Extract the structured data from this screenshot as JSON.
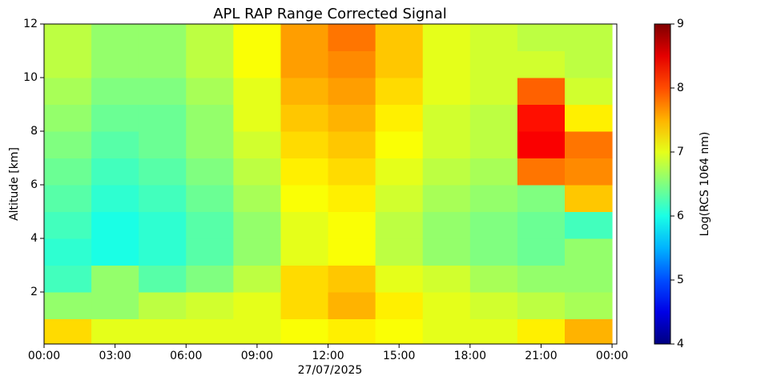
{
  "chart_data": {
    "type": "heatmap",
    "title": "APL RAP Range Corrected Signal",
    "xlabel": "27/07/2025",
    "ylabel": "Altitude [km]",
    "xlim": [
      0,
      24.2
    ],
    "ylim": [
      0.06,
      12
    ],
    "xticks": [
      {
        "value": 0,
        "label": "00:00"
      },
      {
        "value": 3,
        "label": "03:00"
      },
      {
        "value": 6,
        "label": "06:00"
      },
      {
        "value": 9,
        "label": "09:00"
      },
      {
        "value": 12,
        "label": "12:00"
      },
      {
        "value": 15,
        "label": "15:00"
      },
      {
        "value": 18,
        "label": "18:00"
      },
      {
        "value": 21,
        "label": "21:00"
      },
      {
        "value": 24,
        "label": "00:00"
      }
    ],
    "yticks": [
      2,
      4,
      6,
      8,
      10,
      12
    ],
    "x": [
      1,
      3,
      5,
      7,
      9,
      11,
      13,
      15,
      17,
      19,
      21,
      23
    ],
    "y": [
      0.5,
      1.5,
      2.5,
      3.5,
      4.5,
      5.5,
      6.5,
      7.5,
      8.5,
      9.5,
      10.5,
      11.5
    ],
    "z": [
      [
        7.3,
        7.0,
        7.0,
        7.0,
        7.0,
        7.1,
        7.2,
        7.1,
        7.0,
        7.0,
        7.2,
        7.5
      ],
      [
        6.6,
        6.6,
        6.8,
        6.9,
        7.0,
        7.3,
        7.5,
        7.2,
        7.0,
        6.9,
        6.8,
        6.7
      ],
      [
        6.2,
        6.6,
        6.3,
        6.5,
        6.8,
        7.3,
        7.4,
        7.0,
        6.9,
        6.7,
        6.6,
        6.6
      ],
      [
        6.1,
        6.0,
        6.1,
        6.3,
        6.6,
        7.0,
        7.1,
        6.8,
        6.6,
        6.5,
        6.4,
        6.6
      ],
      [
        6.2,
        6.0,
        6.1,
        6.3,
        6.6,
        7.0,
        7.1,
        6.8,
        6.6,
        6.5,
        6.4,
        6.2
      ],
      [
        6.3,
        6.1,
        6.2,
        6.4,
        6.7,
        7.1,
        7.2,
        6.9,
        6.7,
        6.6,
        6.5,
        7.4
      ],
      [
        6.4,
        6.2,
        6.3,
        6.5,
        6.8,
        7.2,
        7.3,
        7.0,
        6.8,
        6.7,
        7.8,
        7.7
      ],
      [
        6.5,
        6.3,
        6.4,
        6.6,
        6.9,
        7.3,
        7.4,
        7.1,
        6.9,
        6.8,
        8.4,
        7.8
      ],
      [
        6.6,
        6.4,
        6.4,
        6.6,
        7.0,
        7.4,
        7.5,
        7.2,
        6.9,
        6.8,
        8.3,
        7.2
      ],
      [
        6.7,
        6.5,
        6.5,
        6.7,
        7.0,
        7.5,
        7.6,
        7.3,
        7.0,
        6.9,
        7.9,
        6.9
      ],
      [
        6.8,
        6.6,
        6.6,
        6.8,
        7.1,
        7.6,
        7.7,
        7.4,
        7.0,
        6.9,
        6.9,
        6.8
      ],
      [
        6.8,
        6.6,
        6.6,
        6.8,
        7.1,
        7.6,
        7.8,
        7.4,
        7.0,
        6.9,
        6.8,
        6.8
      ]
    ],
    "colormap": "jet",
    "clim": [
      4,
      9
    ],
    "cticks": [
      4,
      5,
      6,
      7,
      8,
      9
    ],
    "clabel": "Log(RCS 1064 nm)"
  }
}
